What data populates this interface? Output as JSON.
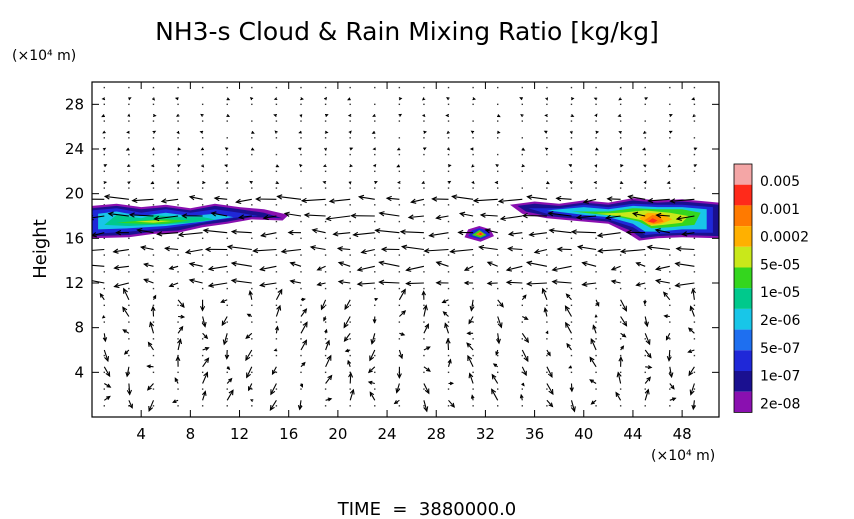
{
  "chart_data": {
    "type": "vector-field",
    "title": "NH3-s Cloud & Rain Mixing Ratio [kg/kg]",
    "ylabel": "Height",
    "y_unit": "(×10⁴ m)",
    "x_unit": "(×10⁴ m)",
    "x_ticks": [
      4,
      8,
      12,
      16,
      20,
      24,
      28,
      32,
      36,
      40,
      44,
      48
    ],
    "y_ticks": [
      4,
      8,
      12,
      16,
      20,
      24,
      28
    ],
    "xlim": [
      0,
      51
    ],
    "ylim": [
      0,
      30
    ],
    "colorbar": {
      "labels": [
        "0.005",
        "0.001",
        "0.0002",
        "5e-05",
        "1e-05",
        "2e-06",
        "5e-07",
        "1e-07",
        "2e-08"
      ],
      "colors": [
        "#f4a6a6",
        "#ff2a1a",
        "#ff7a00",
        "#ffb000",
        "#c9e81a",
        "#34d61e",
        "#00c98c",
        "#18c6e8",
        "#1e6ff0",
        "#1f28d8",
        "#1a1090",
        "#8a10b0"
      ]
    },
    "cloud_regions": [
      {
        "x": [
          0,
          16
        ],
        "y": [
          16,
          19
        ],
        "peak": "5e-05"
      },
      {
        "x": [
          30.5,
          32.5
        ],
        "y": [
          15.6,
          17
        ],
        "peak": "0.0002"
      },
      {
        "x": [
          34,
          51
        ],
        "y": [
          16,
          19.5
        ],
        "peak": "0.0002"
      }
    ],
    "footer": "TIME  =  3880000.0"
  }
}
